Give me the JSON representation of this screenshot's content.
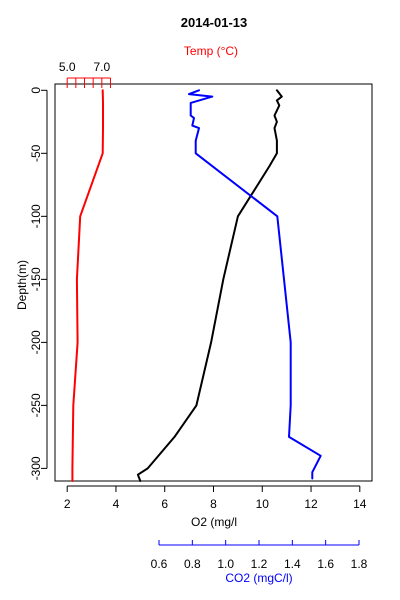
{
  "chart_data": {
    "type": "line",
    "title": "2014-01-13",
    "colors": {
      "temp": "#ff0000",
      "o2": "#000000",
      "co2": "#0000ff",
      "axis": "#000000"
    },
    "y_axis": {
      "label": "Depth(m)",
      "range": [
        5,
        -310
      ],
      "ticks": [
        0,
        -50,
        -100,
        -150,
        -200,
        -250,
        -300
      ],
      "tick_labels": [
        "0",
        "-50",
        "-100",
        "-150",
        "-200",
        "-250",
        "-300"
      ]
    },
    "o2_axis": {
      "label": "O2 (mg/l",
      "range": [
        1.5,
        14.5
      ],
      "ticks": [
        2,
        4,
        6,
        8,
        10,
        12,
        14
      ],
      "tick_labels": [
        "2",
        "4",
        "6",
        "8",
        "10",
        "12",
        "14"
      ]
    },
    "temp_axis": {
      "label": "Temp (°C)",
      "ticks": [
        5.0,
        5.5,
        6.0,
        6.5,
        7.0,
        7.5
      ],
      "tick_labels": [
        "5.0",
        "",
        "",
        "",
        "7.0",
        ""
      ],
      "o2_per_unit": 0.71,
      "o2_at_5": 2.0
    },
    "co2_axis": {
      "label": "CO2 (mgC/l)",
      "range": [
        0.6,
        1.8
      ],
      "ticks": [
        0.6,
        0.8,
        1.0,
        1.2,
        1.4,
        1.6,
        1.8
      ],
      "tick_labels": [
        "0.6",
        "0.8",
        "1.0",
        "1.2",
        "1.4",
        "1.6",
        "1.8"
      ]
    },
    "series": [
      {
        "name": "Temp",
        "key": "temp",
        "values": [
          [
            7.05,
            0
          ],
          [
            7.07,
            -10
          ],
          [
            7.07,
            -30
          ],
          [
            7.05,
            -50
          ],
          [
            5.75,
            -100
          ],
          [
            5.56,
            -150
          ],
          [
            5.6,
            -200
          ],
          [
            5.35,
            -250
          ],
          [
            5.3,
            -300
          ],
          [
            5.3,
            -310
          ]
        ]
      },
      {
        "name": "O2",
        "key": "o2",
        "values": [
          [
            10.6,
            0
          ],
          [
            10.8,
            -5
          ],
          [
            10.6,
            -8
          ],
          [
            10.7,
            -12
          ],
          [
            10.5,
            -20
          ],
          [
            10.6,
            -25
          ],
          [
            10.5,
            -30
          ],
          [
            10.6,
            -40
          ],
          [
            10.6,
            -50
          ],
          [
            10.3,
            -60
          ],
          [
            9.0,
            -100
          ],
          [
            8.4,
            -150
          ],
          [
            7.9,
            -200
          ],
          [
            7.3,
            -250
          ],
          [
            6.4,
            -275
          ],
          [
            5.3,
            -300
          ],
          [
            4.9,
            -305
          ],
          [
            5.0,
            -310
          ]
        ]
      },
      {
        "name": "CO2",
        "key": "co2",
        "values": [
          [
            0.84,
            0
          ],
          [
            0.78,
            -3
          ],
          [
            0.92,
            -5
          ],
          [
            0.79,
            -10
          ],
          [
            0.79,
            -20
          ],
          [
            0.81,
            -22
          ],
          [
            0.8,
            -28
          ],
          [
            0.84,
            -30
          ],
          [
            0.82,
            -40
          ],
          [
            0.82,
            -50
          ],
          [
            1.31,
            -100
          ],
          [
            1.35,
            -150
          ],
          [
            1.39,
            -200
          ],
          [
            1.39,
            -250
          ],
          [
            1.38,
            -275
          ],
          [
            1.57,
            -290
          ],
          [
            1.52,
            -303
          ],
          [
            1.52,
            -308
          ]
        ]
      }
    ]
  }
}
